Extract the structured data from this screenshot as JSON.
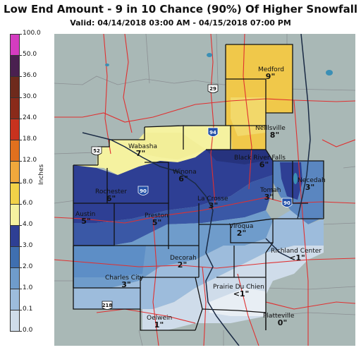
{
  "header": {
    "title": "Low End Amount - 9 in 10 Chance (90%) Of Higher Snowfall",
    "valid": "Valid: 04/14/2018 03:00 AM - 04/15/2018 07:00 PM"
  },
  "legend": {
    "unit": "Inches",
    "ticks": [
      "100.0",
      "50.0",
      "36.0",
      "30.0",
      "24.0",
      "18.0",
      "12.0",
      "8.0",
      "6.0",
      "4.0",
      "3.0",
      "2.0",
      "1.0",
      "0.1",
      "0.0"
    ],
    "colors": [
      "#d43cc0",
      "#4a2050",
      "#6e2a1c",
      "#8a2a1a",
      "#c8321e",
      "#e0701e",
      "#f0a83c",
      "#f2d248",
      "#f5f2a0",
      "#2e3f94",
      "#3f6fb0",
      "#6f9ccb",
      "#9dbcdc",
      "#cfdcea",
      "#f2f2f2"
    ]
  },
  "map": {
    "background": "#a9b8b6",
    "county_line_color": "#e03030",
    "highway_shields": [
      "29",
      "94",
      "52",
      "90",
      "90",
      "218"
    ],
    "labels": [
      {
        "city": "Medford",
        "value": "9\""
      },
      {
        "city": "Neillsville",
        "value": "8\""
      },
      {
        "city": "Wabasha",
        "value": "7\""
      },
      {
        "city": "Black River Falls",
        "value": "6\""
      },
      {
        "city": "Winona",
        "value": "6\""
      },
      {
        "city": "Necedah",
        "value": "3\""
      },
      {
        "city": "Rochester",
        "value": "6\""
      },
      {
        "city": "La Crosse",
        "value": "3\""
      },
      {
        "city": "Tomah",
        "value": "3\""
      },
      {
        "city": "Austin",
        "value": "5\""
      },
      {
        "city": "Preston",
        "value": "5\""
      },
      {
        "city": "Viroqua",
        "value": "2\""
      },
      {
        "city": "Richland Center",
        "value": "<1\""
      },
      {
        "city": "Decorah",
        "value": "2\""
      },
      {
        "city": "Charles City",
        "value": "3\""
      },
      {
        "city": "Prairie Du Chien",
        "value": "<1\""
      },
      {
        "city": "Oelwein",
        "value": "1\""
      },
      {
        "city": "Platteville",
        "value": "0\""
      }
    ]
  }
}
